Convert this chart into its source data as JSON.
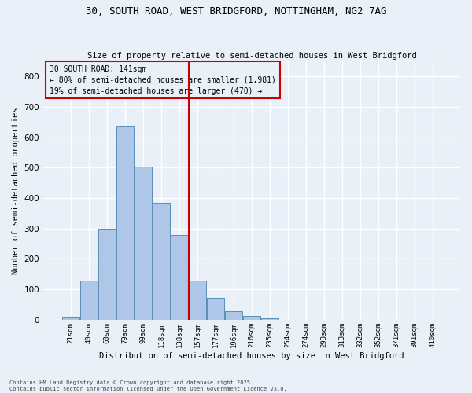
{
  "title_line1": "30, SOUTH ROAD, WEST BRIDGFORD, NOTTINGHAM, NG2 7AG",
  "title_line2": "Size of property relative to semi-detached houses in West Bridgford",
  "xlabel": "Distribution of semi-detached houses by size in West Bridgford",
  "ylabel": "Number of semi-detached properties",
  "categories": [
    "21sqm",
    "40sqm",
    "60sqm",
    "79sqm",
    "99sqm",
    "118sqm",
    "138sqm",
    "157sqm",
    "177sqm",
    "196sqm",
    "216sqm",
    "235sqm",
    "254sqm",
    "274sqm",
    "293sqm",
    "313sqm",
    "332sqm",
    "352sqm",
    "371sqm",
    "391sqm",
    "410sqm"
  ],
  "values": [
    10,
    128,
    300,
    637,
    502,
    385,
    278,
    130,
    72,
    28,
    12,
    5,
    0,
    0,
    0,
    0,
    0,
    0,
    0,
    0,
    0
  ],
  "bar_color": "#aec6e8",
  "bar_edge_color": "#5b8db8",
  "vline_x_idx": 6.5,
  "vline_color": "#cc0000",
  "annotation_title": "30 SOUTH ROAD: 141sqm",
  "annotation_line2": "← 80% of semi-detached houses are smaller (1,981)",
  "annotation_line3": "19% of semi-detached houses are larger (470) →",
  "annotation_box_color": "#cc0000",
  "ylim": [
    0,
    850
  ],
  "yticks": [
    0,
    100,
    200,
    300,
    400,
    500,
    600,
    700,
    800
  ],
  "background_color": "#eaf0f8",
  "grid_color": "#ffffff",
  "footer_line1": "Contains HM Land Registry data © Crown copyright and database right 2025.",
  "footer_line2": "Contains public sector information licensed under the Open Government Licence v3.0."
}
